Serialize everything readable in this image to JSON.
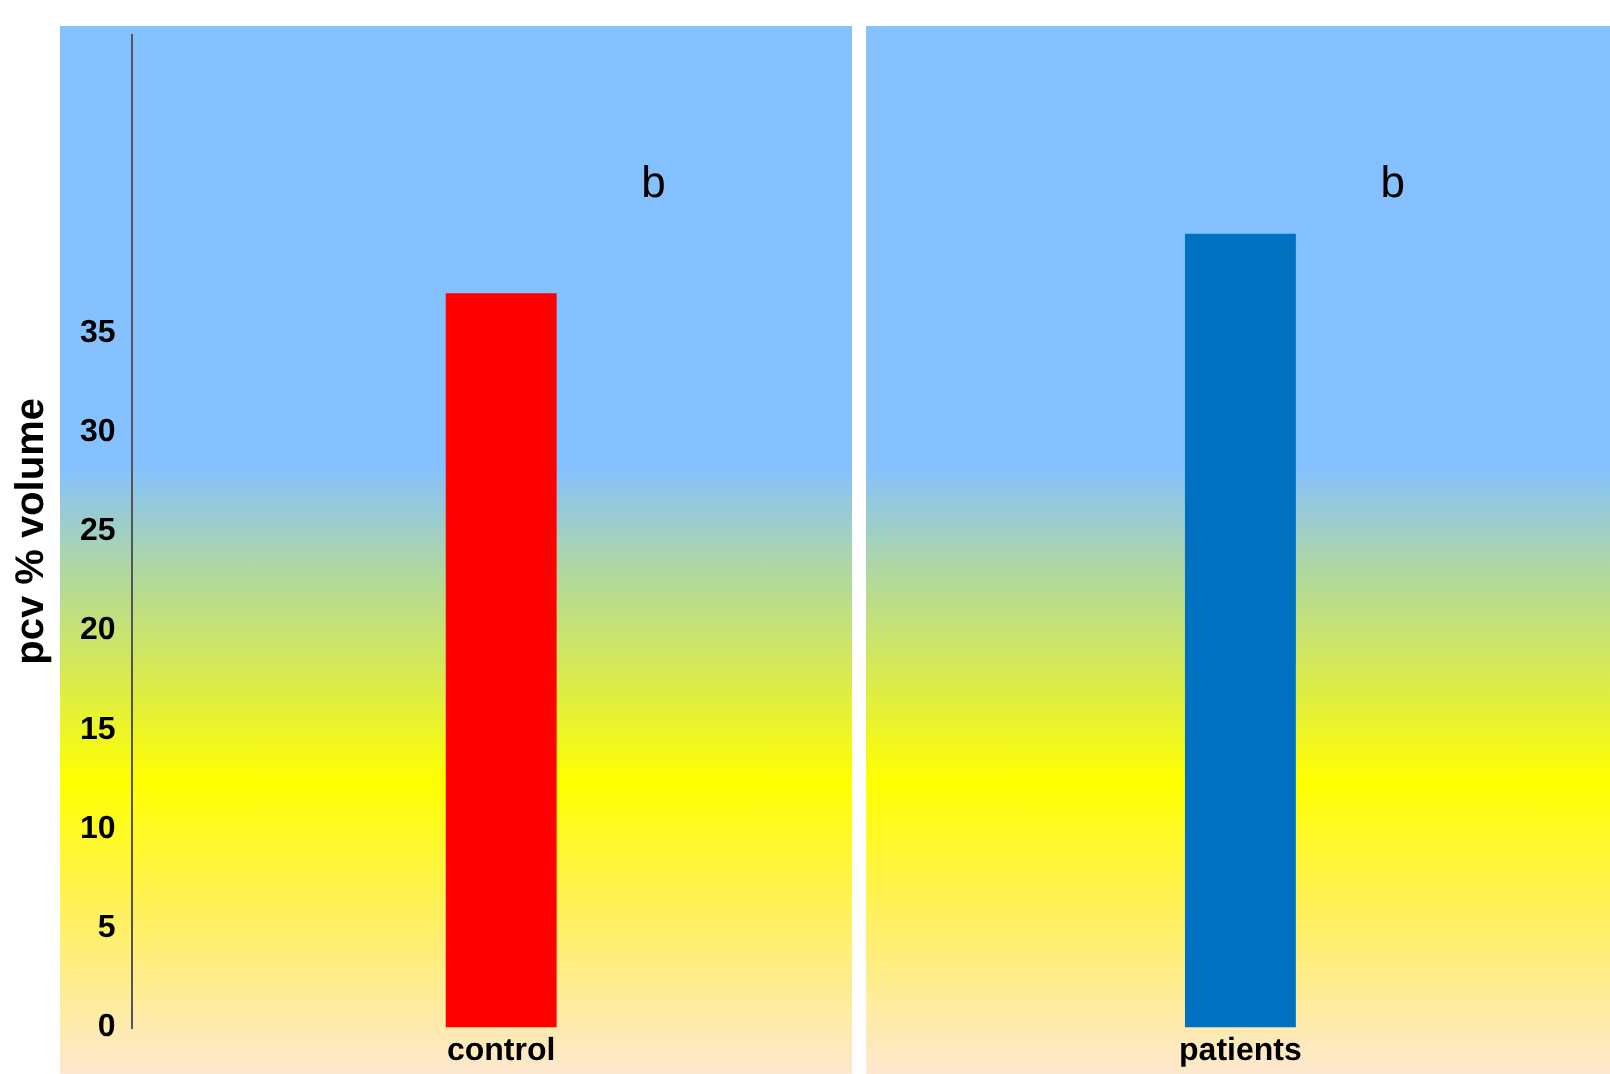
{
  "chart_data": {
    "type": "bar",
    "ylabel": "pcv % volume",
    "categories": [
      "control",
      "patients"
    ],
    "values": [
      37,
      40
    ],
    "colors": [
      "#ff0000",
      "#0070c0"
    ],
    "ylim": [
      0,
      50
    ],
    "yticks": [
      0,
      5,
      10,
      15,
      20,
      25,
      30,
      35
    ],
    "grid": false,
    "legend": false,
    "annotations": [
      "b",
      "b"
    ]
  }
}
